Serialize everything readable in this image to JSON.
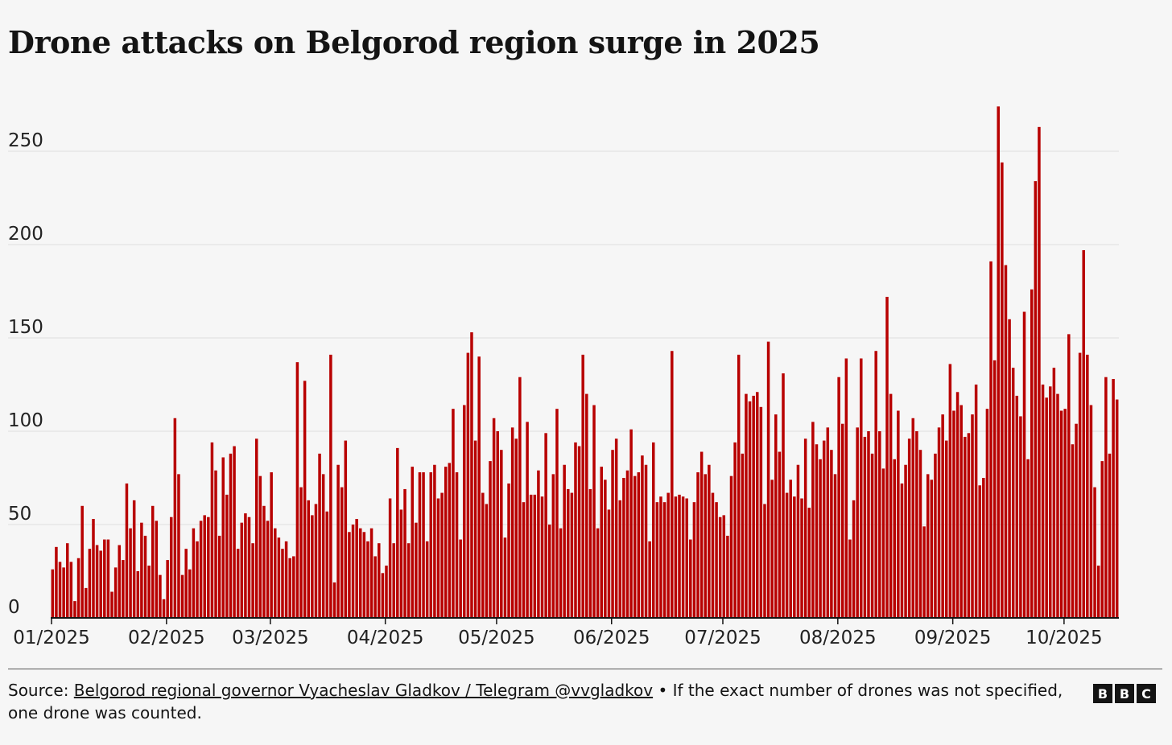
{
  "title": "Drone attacks on Belgorod region surge in 2025",
  "footer": {
    "source_prefix": "Source: ",
    "source_link": "Belgorod regional governor Vyacheslav Gladkov / Telegram @vvgladkov",
    "note": " • If the exact number of drones was not specified, one drone was counted."
  },
  "logo": {
    "letters": [
      "B",
      "B",
      "C"
    ]
  },
  "colors": {
    "bar": "#b80000",
    "grid": "#e5e5e5",
    "axis": "#141414"
  },
  "chart_data": {
    "type": "bar",
    "title": "Drone attacks on Belgorod region surge in 2025",
    "xlabel": "",
    "ylabel": "",
    "ylim": [
      0,
      275
    ],
    "yticks": [
      0,
      50,
      100,
      150,
      200,
      250
    ],
    "xticks": [
      {
        "label": "01/2025",
        "index": 0
      },
      {
        "label": "02/2025",
        "index": 31
      },
      {
        "label": "03/2025",
        "index": 59
      },
      {
        "label": "04/2025",
        "index": 90
      },
      {
        "label": "05/2025",
        "index": 120
      },
      {
        "label": "06/2025",
        "index": 151
      },
      {
        "label": "07/2025",
        "index": 181
      },
      {
        "label": "08/2025",
        "index": 212
      },
      {
        "label": "09/2025",
        "index": 243
      },
      {
        "label": "10/2025",
        "index": 273
      }
    ],
    "start_date": "2025-01-01",
    "values": [
      26,
      38,
      30,
      27,
      40,
      30,
      9,
      32,
      60,
      16,
      37,
      53,
      39,
      36,
      42,
      42,
      14,
      27,
      39,
      31,
      72,
      48,
      63,
      25,
      51,
      44,
      28,
      60,
      52,
      23,
      10,
      31,
      54,
      107,
      77,
      23,
      37,
      26,
      48,
      41,
      52,
      55,
      54,
      94,
      79,
      44,
      86,
      66,
      88,
      92,
      37,
      51,
      56,
      54,
      40,
      96,
      76,
      60,
      52,
      78,
      48,
      43,
      37,
      41,
      32,
      33,
      137,
      70,
      127,
      63,
      55,
      61,
      88,
      77,
      57,
      141,
      19,
      82,
      70,
      95,
      46,
      50,
      53,
      48,
      46,
      41,
      48,
      33,
      40,
      24,
      28,
      64,
      40,
      91,
      58,
      69,
      40,
      81,
      51,
      78,
      78,
      41,
      78,
      82,
      64,
      67,
      81,
      83,
      112,
      78,
      42,
      114,
      142,
      153,
      95,
      140,
      67,
      61,
      84,
      107,
      100,
      90,
      43,
      72,
      102,
      96,
      129,
      62,
      105,
      66,
      66,
      79,
      65,
      99,
      50,
      77,
      112,
      48,
      82,
      69,
      67,
      94,
      92,
      141,
      120,
      69,
      114,
      48,
      81,
      74,
      58,
      90,
      96,
      63,
      75,
      79,
      101,
      76,
      78,
      87,
      82,
      41,
      94,
      62,
      65,
      62,
      67,
      143,
      65,
      66,
      65,
      64,
      42,
      62,
      78,
      89,
      77,
      82,
      67,
      62,
      54,
      55,
      44,
      76,
      94,
      141,
      88,
      120,
      116,
      119,
      121,
      113,
      61,
      148,
      74,
      109,
      89,
      131,
      67,
      74,
      65,
      82,
      64,
      96,
      59,
      105,
      93,
      85,
      95,
      102,
      90,
      77,
      129,
      104,
      139,
      42,
      63,
      102,
      139,
      97,
      100,
      88,
      143,
      100,
      80,
      172,
      120,
      85,
      111,
      72,
      82,
      96,
      107,
      100,
      90,
      49,
      77,
      74,
      88,
      102,
      109,
      95,
      136,
      111,
      121,
      114,
      97,
      99,
      109,
      125,
      71,
      75,
      112,
      191,
      138,
      274,
      244,
      189,
      160,
      134,
      119,
      108,
      164,
      85,
      176,
      234,
      263,
      125,
      118,
      124,
      134,
      120,
      111,
      112,
      152,
      93,
      104,
      142,
      197,
      141,
      114,
      70,
      28,
      84,
      129,
      88,
      128,
      117
    ]
  }
}
